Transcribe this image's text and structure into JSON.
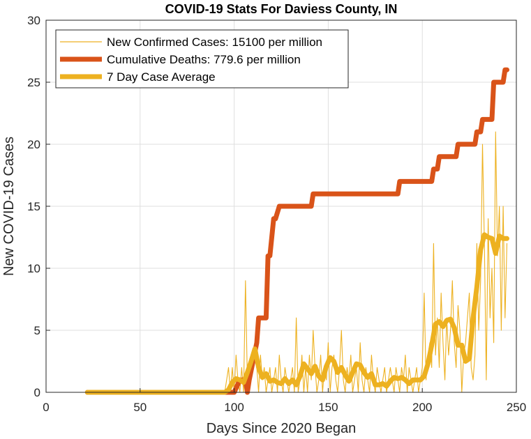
{
  "chart_data": {
    "type": "line",
    "title": "COVID-19 Stats For Daviess County, IN",
    "xlabel": "Days Since 2020 Began",
    "ylabel": "New COVID-19 Cases",
    "xlim": [
      0,
      250
    ],
    "ylim": [
      0,
      30
    ],
    "xticks": [
      0,
      50,
      100,
      150,
      200,
      250
    ],
    "yticks": [
      0,
      5,
      10,
      15,
      20,
      25,
      30
    ],
    "grid": true,
    "legend_position": "top-left",
    "series": [
      {
        "name": "New Confirmed Cases: 15100 per million",
        "color": "#EDB120",
        "line": "thin",
        "x": [
          22,
          50,
          95,
          97,
          98,
          99,
          100,
          101,
          102,
          103,
          104,
          105,
          106,
          107,
          108,
          109,
          110,
          111,
          112,
          113,
          114,
          115,
          116,
          117,
          118,
          119,
          120,
          121,
          122,
          123,
          124,
          125,
          126,
          127,
          128,
          129,
          130,
          131,
          132,
          133,
          134,
          135,
          136,
          137,
          138,
          139,
          140,
          141,
          142,
          143,
          144,
          145,
          146,
          147,
          148,
          149,
          150,
          151,
          152,
          153,
          154,
          155,
          156,
          157,
          158,
          159,
          160,
          161,
          162,
          163,
          164,
          165,
          166,
          167,
          168,
          169,
          170,
          171,
          172,
          173,
          174,
          175,
          176,
          177,
          178,
          179,
          180,
          181,
          182,
          183,
          184,
          185,
          186,
          187,
          188,
          189,
          190,
          191,
          192,
          193,
          194,
          195,
          196,
          197,
          198,
          199,
          200,
          201,
          202,
          203,
          204,
          205,
          206,
          207,
          208,
          209,
          210,
          211,
          212,
          213,
          214,
          215,
          216,
          217,
          218,
          219,
          220,
          221,
          222,
          223,
          224,
          225,
          226,
          227,
          228,
          229,
          230,
          231,
          232,
          233,
          234,
          235,
          236,
          237,
          238,
          239,
          240,
          241,
          242,
          243,
          244,
          245
        ],
        "y": [
          0,
          0,
          0,
          2,
          0,
          2,
          0,
          3,
          1,
          0,
          2,
          0,
          9,
          1,
          0,
          2,
          3,
          4,
          2,
          0,
          3,
          1,
          2,
          0,
          1,
          2,
          0,
          1,
          2,
          0,
          3,
          1,
          0,
          2,
          1,
          0,
          1,
          2,
          0,
          6,
          0,
          1,
          3,
          0,
          2,
          0,
          3,
          1,
          5,
          2,
          0,
          1,
          3,
          0,
          2,
          1,
          4,
          0,
          2,
          3,
          1,
          0,
          2,
          5,
          1,
          0,
          2,
          1,
          3,
          0,
          1,
          2,
          0,
          4,
          1,
          0,
          2,
          1,
          0,
          3,
          1,
          0,
          2,
          1,
          0,
          1,
          2,
          0,
          1,
          2,
          1,
          0,
          2,
          1,
          0,
          2,
          1,
          3,
          0,
          2,
          1,
          0,
          1,
          2,
          0,
          1,
          2,
          8,
          1,
          3,
          4,
          2,
          12,
          3,
          6,
          2,
          8,
          4,
          1,
          6,
          3,
          5,
          9,
          4,
          2,
          7,
          5,
          0,
          3,
          4,
          6,
          8,
          2,
          1,
          3,
          12,
          5,
          9,
          20,
          12,
          1,
          14,
          6,
          10,
          4,
          21,
          11,
          15,
          5,
          15,
          6,
          12
        ]
      },
      {
        "name": "Cumulative Deaths: 779.6 per million",
        "color": "#D95319",
        "line": "thick",
        "x": [
          22,
          95,
          99,
          100,
          103,
          106,
          107,
          108,
          112,
          113,
          117,
          118,
          119,
          121,
          122,
          124,
          138,
          139,
          141,
          142,
          143,
          144,
          172,
          174,
          186,
          187,
          188,
          199,
          201,
          205,
          206,
          207,
          208,
          209,
          210,
          217,
          218,
          219,
          228,
          229,
          231,
          232,
          233,
          237,
          238,
          239,
          243,
          244,
          245
        ],
        "y": [
          0,
          0,
          0,
          0,
          1,
          1,
          0,
          1,
          4,
          6,
          6,
          11,
          11,
          14,
          14,
          15,
          15,
          15,
          15,
          16,
          16,
          16,
          16,
          16,
          16,
          16,
          17,
          17,
          17,
          17,
          18,
          18,
          18,
          19,
          19,
          19,
          19,
          20,
          20,
          21,
          21,
          22,
          22,
          22,
          25,
          25,
          25,
          26,
          26
        ]
      },
      {
        "name": "7 Day Case Average",
        "color": "#EDB120",
        "line": "thick",
        "x": [
          22,
          95,
          97,
          99,
          101,
          103,
          105,
          107,
          109,
          111,
          113,
          115,
          117,
          119,
          121,
          123,
          125,
          127,
          129,
          131,
          133,
          135,
          137,
          139,
          141,
          143,
          145,
          147,
          149,
          151,
          153,
          155,
          157,
          159,
          161,
          163,
          165,
          167,
          169,
          171,
          173,
          175,
          177,
          179,
          181,
          183,
          185,
          187,
          189,
          191,
          193,
          195,
          197,
          199,
          201,
          203,
          205,
          207,
          209,
          211,
          213,
          215,
          217,
          219,
          221,
          223,
          225,
          227,
          229,
          231,
          233,
          235,
          237,
          239,
          241,
          243,
          245
        ],
        "y": [
          0,
          0,
          0.2,
          0.8,
          1.1,
          1.0,
          0.8,
          1.6,
          2.5,
          3.5,
          2.0,
          1.2,
          1.5,
          0.9,
          1.0,
          0.8,
          0.7,
          1.1,
          0.7,
          1.0,
          0.6,
          1.3,
          2.3,
          1.9,
          1.5,
          2.1,
          1.3,
          1.0,
          2.1,
          2.8,
          2.5,
          1.6,
          2.0,
          1.4,
          0.9,
          1.6,
          2.3,
          2.2,
          1.6,
          1.2,
          1.5,
          0.6,
          0.6,
          0.7,
          0.5,
          0.9,
          1.2,
          1.1,
          1.2,
          1.0,
          0.7,
          1.0,
          1.0,
          1.0,
          1.3,
          2.3,
          3.8,
          5.5,
          5.7,
          5.3,
          5.8,
          5.9,
          5.2,
          3.8,
          3.8,
          2.5,
          2.7,
          6.0,
          8.5,
          11.5,
          12.7,
          12.5,
          12.4,
          11.2,
          12.6,
          12.4,
          12.4
        ]
      }
    ]
  }
}
